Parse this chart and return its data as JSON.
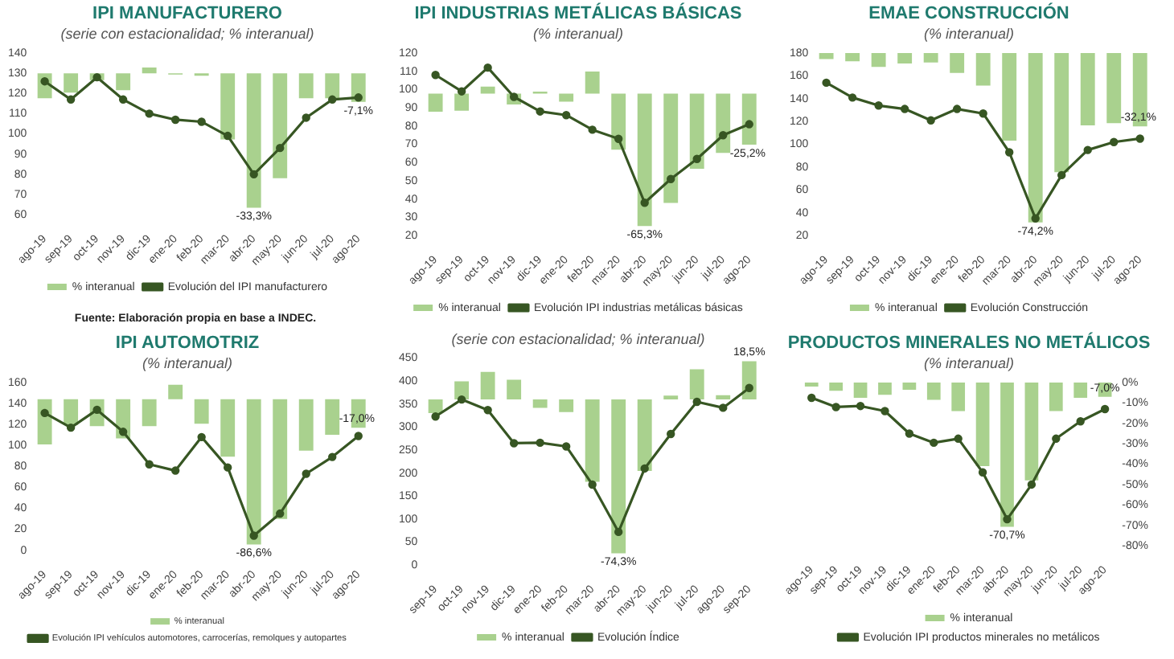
{
  "chart_data": [
    {
      "type": "bar",
      "title": "IPI MANUFACTURERO",
      "subtitle": "(serie con estacionalidad; % interanual)",
      "categories": [
        "ago-19",
        "sep-19",
        "oct-19",
        "nov-19",
        "dic-19",
        "ene-20",
        "feb-20",
        "mar-20",
        "abr-20",
        "may-20",
        "jun-20",
        "jul-20",
        "ago-20"
      ],
      "series": [
        {
          "name": "% interanual",
          "axis": "y2",
          "color": "#a9d18e",
          "values": [
            -6.2,
            -4.8,
            -1.7,
            -4.2,
            1.4,
            -0.3,
            -0.6,
            -16.4,
            -33.3,
            -26.0,
            -6.2,
            -6.2,
            -7.1
          ],
          "value_labels": [
            null,
            null,
            null,
            null,
            null,
            null,
            null,
            null,
            "-33,3%",
            null,
            null,
            null,
            "-7,1%"
          ]
        },
        {
          "name": "Evolución del IPI manufacturero",
          "type": "line",
          "color": "#375623",
          "values": [
            126,
            117,
            128,
            117,
            110,
            107,
            106,
            99,
            80,
            93,
            108,
            117,
            118
          ]
        }
      ],
      "ylim": [
        60,
        140
      ],
      "yticks": [
        60,
        70,
        80,
        90,
        100,
        110,
        120,
        130,
        140
      ],
      "legend": "bottom",
      "marker": "circle",
      "line_style": "solid",
      "annotations": [
        "Fuente: Elaboración propia en base a INDEC."
      ]
    },
    {
      "type": "bar",
      "title": "IPI INDUSTRIAS METÁLICAS BÁSICAS",
      "subtitle": "(% interanual)",
      "categories": [
        "ago-19",
        "sep-19",
        "oct-19",
        "nov-19",
        "dic-19",
        "ene-20",
        "feb-20",
        "mar-20",
        "abr-20",
        "may-20",
        "jun-20",
        "jul-20",
        "ago-20"
      ],
      "series": [
        {
          "name": "% interanual",
          "axis": "y2",
          "color": "#a9d18e",
          "values": [
            -8.9,
            -8.4,
            3.5,
            -5.4,
            1.0,
            -4.0,
            10.9,
            -27.7,
            -65.3,
            -53.9,
            -37.1,
            -29.2,
            -25.2
          ],
          "value_labels": [
            null,
            null,
            null,
            null,
            null,
            null,
            null,
            null,
            "-65,3%",
            null,
            null,
            null,
            "-25,2%"
          ]
        },
        {
          "name": "Evolución IPI industrias metálicas básicas",
          "type": "line",
          "color": "#375623",
          "values": [
            108,
            99,
            112,
            96,
            88,
            86,
            78,
            73,
            38,
            51,
            62,
            75,
            81
          ]
        }
      ],
      "ylim": [
        20,
        120
      ],
      "yticks": [
        20,
        30,
        40,
        50,
        60,
        70,
        80,
        90,
        100,
        110,
        120
      ],
      "legend": "bottom",
      "marker": "circle",
      "line_style": "solid"
    },
    {
      "type": "bar",
      "title": "EMAE CONSTRUCCIÓN",
      "subtitle": "(% interanual)",
      "categories": [
        "ago-19",
        "sep-19",
        "oct-19",
        "nov-19",
        "dic-19",
        "ene-20",
        "feb-20",
        "mar-20",
        "abr-20",
        "may-20",
        "jun-20",
        "jul-20",
        "ago-20"
      ],
      "series": [
        {
          "name": "% interanual",
          "axis": "y2",
          "color": "#a9d18e",
          "values": [
            -2.6,
            -3.6,
            -6.1,
            -4.6,
            -4.1,
            -8.7,
            -14.3,
            -38.4,
            -74.2,
            -52.2,
            -31.7,
            -30.7,
            -32.1
          ],
          "value_labels": [
            null,
            null,
            null,
            null,
            null,
            null,
            null,
            null,
            "-74,2%",
            null,
            null,
            null,
            "-32,1%"
          ]
        },
        {
          "name": "Evolución Construcción",
          "type": "line",
          "color": "#375623",
          "values": [
            154,
            141,
            134,
            131,
            121,
            131,
            127,
            93,
            35,
            73,
            95,
            102,
            105
          ]
        }
      ],
      "ylim": [
        20,
        180
      ],
      "yticks": [
        20,
        40,
        60,
        80,
        100,
        120,
        140,
        160,
        180
      ],
      "legend": "bottom",
      "marker": "circle",
      "line_style": "solid"
    },
    {
      "type": "bar",
      "title": "IPI AUTOMOTRIZ",
      "subtitle": "(% interanual)",
      "categories": [
        "ago-19",
        "sep-19",
        "oct-19",
        "nov-19",
        "dic-19",
        "ene-20",
        "feb-20",
        "mar-20",
        "abr-20",
        "may-20",
        "jun-20",
        "jul-20",
        "ago-20"
      ],
      "series": [
        {
          "name": "% interanual",
          "axis": "y2",
          "color": "#a9d18e",
          "values": [
            -26.9,
            -15.3,
            -16.0,
            -23.3,
            -16.0,
            8.7,
            -14.6,
            -34.2,
            -86.6,
            -71.3,
            -30.6,
            -21.1,
            -17.0
          ],
          "value_labels": [
            null,
            null,
            null,
            null,
            null,
            null,
            null,
            null,
            "-86,6%",
            null,
            null,
            null,
            "-17,0%"
          ]
        },
        {
          "name": "Evolución IPI vehículos automotores, carrocerías, remolques y autopartes",
          "type": "line",
          "color": "#375623",
          "values": [
            131,
            117,
            134,
            113,
            82,
            76,
            108,
            79,
            14,
            35,
            73,
            89,
            109
          ]
        }
      ],
      "ylim": [
        0,
        160
      ],
      "yticks": [
        0,
        20,
        40,
        60,
        80,
        100,
        120,
        140,
        160
      ],
      "legend": "bottom",
      "marker": "circle",
      "line_style": "solid"
    },
    {
      "type": "bar",
      "subtitle": "(serie con estacionalidad; % interanual)",
      "categories": [
        "sep-19",
        "oct-19",
        "nov-19",
        "dic-19",
        "ene-20",
        "feb-20",
        "mar-20",
        "abr-20",
        "may-20",
        "jun-20",
        "jul-20",
        "ago-20",
        "sep-20"
      ],
      "series": [
        {
          "name": "% interanual",
          "axis": "y2",
          "color": "#a9d18e",
          "values": [
            -6.6,
            8.8,
            13.3,
            9.6,
            -4.0,
            -6.1,
            -39.8,
            -74.3,
            -34.5,
            1.9,
            14.6,
            2.1,
            18.5
          ],
          "value_labels": [
            null,
            null,
            null,
            null,
            null,
            null,
            null,
            "-74,3%",
            null,
            null,
            null,
            null,
            "18,5%"
          ]
        },
        {
          "name": "Evolución Índice",
          "type": "line",
          "color": "#375623",
          "values": [
            323,
            360,
            337,
            265,
            266,
            258,
            175,
            72,
            210,
            285,
            355,
            342,
            385
          ]
        }
      ],
      "ylim": [
        0,
        450
      ],
      "yticks": [
        0,
        50,
        100,
        150,
        200,
        250,
        300,
        350,
        400,
        450
      ],
      "legend": "bottom",
      "marker": "circle",
      "line_style": "solid"
    },
    {
      "type": "bar",
      "title": "PRODUCTOS MINERALES NO METÁLICOS",
      "subtitle": "(% interanual)",
      "categories": [
        "ago-19",
        "sep-19",
        "oct-19",
        "nov-19",
        "dic-19",
        "ene-20",
        "feb-20",
        "mar-20",
        "abr-20",
        "may-20",
        "jun-20",
        "jul-20",
        "ago-20"
      ],
      "series": [
        {
          "name": "% interanual",
          "axis": "y2",
          "color": "#a9d18e",
          "values": [
            -2,
            -4,
            -7.5,
            -6,
            -3.5,
            -8.5,
            -14,
            -41,
            -70.7,
            -48,
            -14,
            -7.5,
            -7.0
          ],
          "value_labels": [
            null,
            null,
            null,
            null,
            null,
            null,
            null,
            null,
            "-70,7%",
            null,
            null,
            null,
            "-7,0%"
          ]
        },
        {
          "name": "Evolución IPI productos minerales no metálicos",
          "type": "line",
          "axis": "y2",
          "color": "#375623",
          "values": [
            -7.5,
            -12,
            -11.5,
            -14,
            -25,
            -29.5,
            -27.5,
            -44,
            -67,
            -50,
            -27.5,
            -19,
            -13
          ]
        }
      ],
      "y2lim": [
        -80,
        0
      ],
      "y2ticks": [
        {
          "value": 0,
          "label": "0%"
        },
        {
          "value": -10,
          "label": "-10%"
        },
        {
          "value": -20,
          "label": "-20%"
        },
        {
          "value": -30,
          "label": "-30%"
        },
        {
          "value": -40,
          "label": "-40%"
        },
        {
          "value": -50,
          "label": "-50%"
        },
        {
          "value": -60,
          "label": "-60%"
        },
        {
          "value": -70,
          "label": "-70%"
        },
        {
          "value": -80,
          "label": "-80%"
        }
      ],
      "legend": "bottom",
      "marker": "circle",
      "line_style": "solid"
    }
  ]
}
